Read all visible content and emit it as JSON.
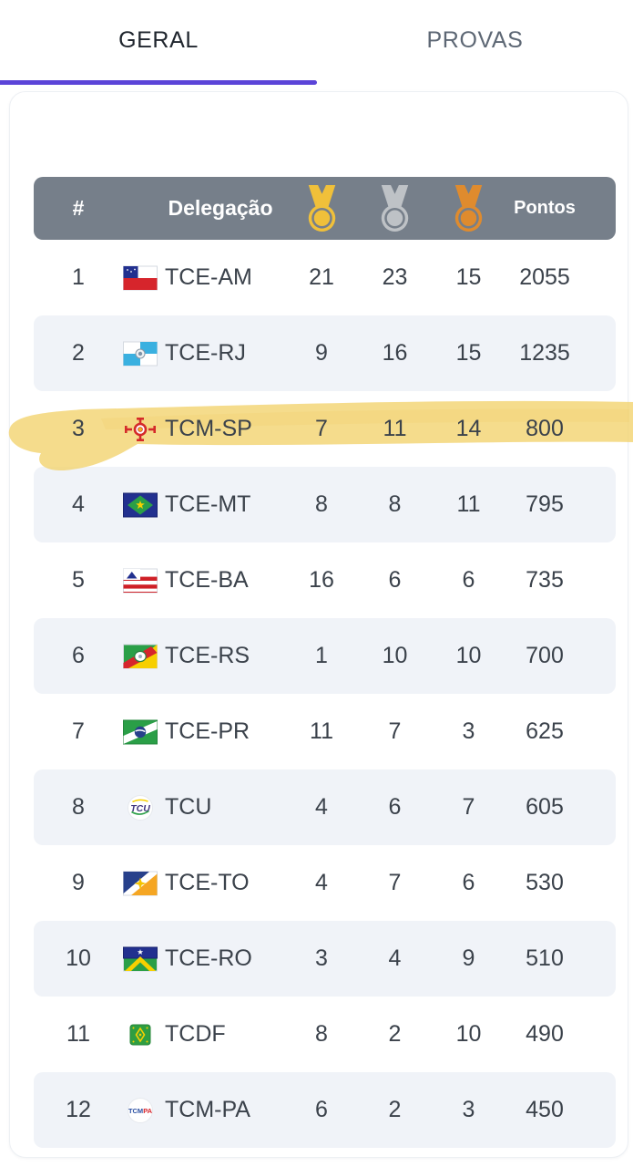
{
  "tabs": {
    "geral": {
      "label": "GERAL",
      "active": true
    },
    "provas": {
      "label": "PROVAS",
      "active": false
    }
  },
  "accent_color": "#5b44d8",
  "highlight_color": "#f2d26c",
  "table": {
    "header": {
      "rank": "#",
      "delegation": "Delegação",
      "points": "Pontos",
      "medal_icons": [
        "gold-medal-icon",
        "silver-medal-icon",
        "bronze-medal-icon"
      ]
    },
    "header_bg": "#767f8a",
    "medal_colors": {
      "gold": "#f0c03a",
      "silver": "#bec2c6",
      "bronze": "#df8b2e"
    },
    "row_alt_bg": "#f0f3f8",
    "rows": [
      {
        "rank": "1",
        "delegation": "TCE-AM",
        "flag": "flag-tce-am",
        "gold": "21",
        "silver": "23",
        "bronze": "15",
        "points": "2055",
        "highlighted": false
      },
      {
        "rank": "2",
        "delegation": "TCE-RJ",
        "flag": "flag-tce-rj",
        "gold": "9",
        "silver": "16",
        "bronze": "15",
        "points": "1235",
        "highlighted": false
      },
      {
        "rank": "3",
        "delegation": "TCM-SP",
        "flag": "flag-tcm-sp",
        "gold": "7",
        "silver": "11",
        "bronze": "14",
        "points": "800",
        "highlighted": true
      },
      {
        "rank": "4",
        "delegation": "TCE-MT",
        "flag": "flag-tce-mt",
        "gold": "8",
        "silver": "8",
        "bronze": "11",
        "points": "795",
        "highlighted": false
      },
      {
        "rank": "5",
        "delegation": "TCE-BA",
        "flag": "flag-tce-ba",
        "gold": "16",
        "silver": "6",
        "bronze": "6",
        "points": "735",
        "highlighted": false
      },
      {
        "rank": "6",
        "delegation": "TCE-RS",
        "flag": "flag-tce-rs",
        "gold": "1",
        "silver": "10",
        "bronze": "10",
        "points": "700",
        "highlighted": false
      },
      {
        "rank": "7",
        "delegation": "TCE-PR",
        "flag": "flag-tce-pr",
        "gold": "11",
        "silver": "7",
        "bronze": "3",
        "points": "625",
        "highlighted": false
      },
      {
        "rank": "8",
        "delegation": "TCU",
        "flag": "logo-tcu",
        "gold": "4",
        "silver": "6",
        "bronze": "7",
        "points": "605",
        "highlighted": false
      },
      {
        "rank": "9",
        "delegation": "TCE-TO",
        "flag": "flag-tce-to",
        "gold": "4",
        "silver": "7",
        "bronze": "6",
        "points": "530",
        "highlighted": false
      },
      {
        "rank": "10",
        "delegation": "TCE-RO",
        "flag": "flag-tce-ro",
        "gold": "3",
        "silver": "4",
        "bronze": "9",
        "points": "510",
        "highlighted": false
      },
      {
        "rank": "11",
        "delegation": "TCDF",
        "flag": "flag-tcdf",
        "gold": "8",
        "silver": "2",
        "bronze": "10",
        "points": "490",
        "highlighted": false
      },
      {
        "rank": "12",
        "delegation": "TCM-PA",
        "flag": "logo-tcm-pa",
        "gold": "6",
        "silver": "2",
        "bronze": "3",
        "points": "450",
        "highlighted": false
      }
    ]
  }
}
